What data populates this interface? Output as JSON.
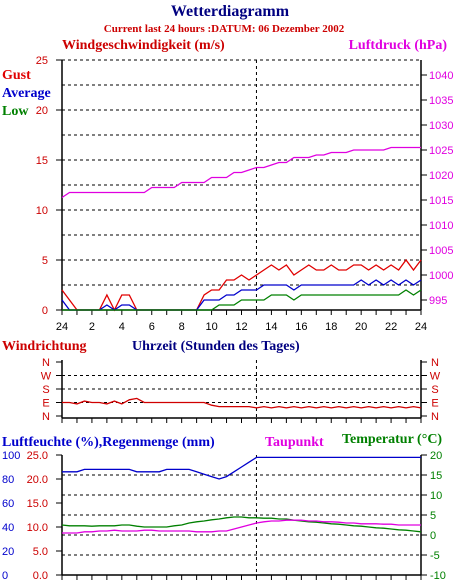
{
  "title": "Wetterdiagramm",
  "subtitle": "Current last 24 hours :DATUM: 06 Dezember 2002",
  "colors": {
    "gust": "#e00000",
    "average": "#0000cc",
    "low": "#008000",
    "pressure": "#e000e0",
    "wind": "#d00000",
    "temp": "#008000",
    "dew": "#e000e0",
    "hum": "#0000cc",
    "rain": "#e00000"
  },
  "chart_data": [
    {
      "type": "line",
      "ylabel_left": "Windgeschwindigkeit (m/s)",
      "ylabel_right": "Luftdruck (hPa)",
      "legend": [
        "Gust",
        "Average",
        "Low"
      ],
      "x_ticks": [
        "24",
        "2",
        "4",
        "6",
        "8",
        "10",
        "12",
        "14",
        "16",
        "18",
        "20",
        "22",
        "24"
      ],
      "y_ticks_left": [
        "0",
        "5",
        "10",
        "15",
        "20",
        "25"
      ],
      "y_ticks_right": [
        "995",
        "1000",
        "1005",
        "1010",
        "1015",
        "1020",
        "1025",
        "1030",
        "1035",
        "1040"
      ],
      "ylim_left": [
        0,
        25
      ],
      "ylim_right": [
        993,
        1043
      ],
      "hours": [
        0,
        0.5,
        1,
        1.5,
        2,
        2.5,
        3,
        3.5,
        4,
        4.5,
        5,
        5.5,
        6,
        6.5,
        7,
        7.5,
        8,
        8.5,
        9,
        9.5,
        10,
        10.5,
        11,
        11.5,
        12,
        12.5,
        13,
        13.5,
        14,
        14.5,
        15,
        15.5,
        16,
        16.5,
        17,
        17.5,
        18,
        18.5,
        19,
        19.5,
        20,
        20.5,
        21,
        21.5,
        22,
        22.5,
        23,
        23.5,
        24
      ],
      "series": [
        {
          "name": "Gust",
          "values": [
            2,
            1,
            0,
            0,
            0,
            0,
            1.5,
            0,
            1.5,
            1.5,
            0,
            0,
            0,
            0,
            0,
            0,
            0,
            0,
            0,
            1.5,
            2,
            2,
            3,
            3,
            3.5,
            3,
            3.5,
            4,
            4.5,
            4,
            4.5,
            3.5,
            4,
            4.5,
            4,
            4,
            4.5,
            4,
            4,
            4.5,
            4.5,
            4,
            4.5,
            4,
            4.5,
            4,
            5,
            4,
            5
          ]
        },
        {
          "name": "Average",
          "values": [
            1,
            0,
            0,
            0,
            0,
            0,
            0.5,
            0,
            0.5,
            0.5,
            0,
            0,
            0,
            0,
            0,
            0,
            0,
            0,
            0,
            1,
            1,
            1,
            1.5,
            1.5,
            2,
            2,
            2,
            2.5,
            2.5,
            2.5,
            2.5,
            2,
            2.5,
            2.5,
            2.5,
            2.5,
            2.5,
            2.5,
            2.5,
            2.5,
            3,
            2.5,
            3,
            2.5,
            3,
            2.5,
            3,
            2.5,
            3
          ]
        },
        {
          "name": "Low",
          "values": [
            0,
            0,
            0,
            0,
            0,
            0,
            0,
            0,
            0,
            0,
            0,
            0,
            0,
            0,
            0,
            0,
            0,
            0,
            0,
            0,
            0,
            0.5,
            0.5,
            0.5,
            1,
            1,
            1,
            1,
            1.5,
            1.5,
            1.5,
            1,
            1.5,
            1.5,
            1.5,
            1.5,
            1.5,
            1.5,
            1.5,
            1.5,
            1.5,
            1.5,
            1.5,
            1.5,
            1.5,
            1.5,
            2,
            1.5,
            2
          ]
        },
        {
          "name": "Luftdruck",
          "axis": "right",
          "values": [
            1015.5,
            1016.5,
            1016.5,
            1016.5,
            1016.5,
            1016.5,
            1016.5,
            1016.5,
            1016.5,
            1016.5,
            1016.5,
            1016.5,
            1017.5,
            1017.5,
            1017.5,
            1017.5,
            1018.5,
            1018.5,
            1018.5,
            1018.5,
            1019.5,
            1019.5,
            1019.5,
            1020.5,
            1020.5,
            1021,
            1021.5,
            1021.5,
            1022,
            1022.5,
            1022.5,
            1023.5,
            1023.5,
            1023.5,
            1024,
            1024,
            1024.5,
            1024.5,
            1024.5,
            1025,
            1025,
            1025,
            1025,
            1025,
            1025.5,
            1025.5,
            1025.5,
            1025.5,
            1025.5
          ]
        }
      ]
    },
    {
      "type": "line",
      "ylabel": "Windrichtung",
      "xlabel": "Uhrzeit (Stunden des Tages)",
      "y_ticks": [
        "N",
        "W",
        "S",
        "E",
        "N"
      ],
      "hours": [
        0,
        0.5,
        1,
        1.5,
        2,
        2.5,
        3,
        3.5,
        4,
        4.5,
        5,
        5.5,
        6,
        6.5,
        7,
        7.5,
        8,
        8.5,
        9,
        9.5,
        10,
        10.5,
        11,
        11.5,
        12,
        12.5,
        13,
        13.5,
        14,
        14.5,
        15,
        15.5,
        16,
        16.5,
        17,
        17.5,
        18,
        18.5,
        19,
        19.5,
        20,
        20.5,
        21,
        21.5,
        22,
        22.5,
        23,
        23.5,
        24
      ],
      "series": [
        {
          "name": "Windrichtung",
          "values": [
            3,
            3,
            3.1,
            2.9,
            3,
            3,
            3.1,
            2.9,
            3.1,
            2.8,
            2.7,
            3,
            3,
            3,
            3,
            3,
            3,
            3,
            3,
            3,
            3.2,
            3.3,
            3.3,
            3.3,
            3.3,
            3.3,
            3.4,
            3.3,
            3.4,
            3.3,
            3.4,
            3.3,
            3.4,
            3.3,
            3.4,
            3.3,
            3.4,
            3.3,
            3.4,
            3.3,
            3.4,
            3.3,
            3.4,
            3.3,
            3.4,
            3.3,
            3.4,
            3.3,
            3.4
          ]
        }
      ]
    },
    {
      "type": "line",
      "ylabel_left": "Luftfeuchte (%),Regenmenge (mm)",
      "label_dew": "Taupunkt",
      "ylabel_right": "Temperatur (°C)",
      "y_ticks_hum": [
        "0",
        "20",
        "40",
        "60",
        "80",
        "100"
      ],
      "y_ticks_rain": [
        "0.0",
        "5.0",
        "10.0",
        "15.0",
        "20.0",
        "25.0"
      ],
      "y_ticks_temp": [
        "-10",
        "-5",
        "0",
        "5",
        "10",
        "15",
        "20"
      ],
      "ylim_left": [
        0,
        25
      ],
      "ylim_right": [
        -10,
        20
      ],
      "hours": [
        0,
        0.5,
        1,
        1.5,
        2,
        2.5,
        3,
        3.5,
        4,
        4.5,
        5,
        5.5,
        6,
        6.5,
        7,
        7.5,
        8,
        8.5,
        9,
        9.5,
        10,
        10.5,
        11,
        11.5,
        12,
        12.5,
        13,
        13.5,
        14,
        14.5,
        15,
        15.5,
        16,
        16.5,
        17,
        17.5,
        18,
        18.5,
        19,
        19.5,
        20,
        20.5,
        21,
        21.5,
        22,
        22.5,
        23,
        23.5,
        24
      ],
      "series": [
        {
          "name": "Regenmenge",
          "axis": "left",
          "values": [
            21.5,
            21.5,
            21.5,
            22,
            22,
            22,
            22,
            22,
            22,
            22,
            21.5,
            21.5,
            21.5,
            21.5,
            22,
            22,
            22,
            22,
            21.5,
            21,
            20.5,
            20,
            20.5,
            21.5,
            22.5,
            23.5,
            24.5,
            24.5,
            24.5,
            24.5,
            24.5,
            24.5,
            24.5,
            24.5,
            24.5,
            24.5,
            24.5,
            24.5,
            24.5,
            24.5,
            24.5,
            24.5,
            24.5,
            24.5,
            24.5,
            24.5,
            24.5,
            24.5,
            24.5
          ]
        },
        {
          "name": "Temperatur",
          "axis": "right",
          "values": [
            2.5,
            2.3,
            2.3,
            2.3,
            2.2,
            2.3,
            2.3,
            2.3,
            2.5,
            2.5,
            2.2,
            2,
            2,
            2,
            2,
            2.3,
            2.5,
            3,
            3.3,
            3.5,
            3.8,
            4,
            4.3,
            4.5,
            4.5,
            4.3,
            4.3,
            4.2,
            4.2,
            4,
            4,
            3.7,
            3.5,
            3.3,
            3.2,
            3,
            2.8,
            2.7,
            2.5,
            2.3,
            2.2,
            2,
            1.8,
            1.7,
            1.5,
            1.3,
            1.2,
            1,
            0.8
          ]
        },
        {
          "name": "Taupunkt",
          "axis": "right",
          "values": [
            0.5,
            0.5,
            0.5,
            0.8,
            0.8,
            1,
            1,
            1.2,
            1,
            1,
            1,
            1.2,
            1.2,
            1,
            1,
            1,
            1,
            1,
            0.8,
            0.8,
            0.8,
            1,
            1,
            1.5,
            2,
            2.5,
            3,
            3.3,
            3.5,
            3.5,
            3.7,
            3.7,
            3.7,
            3.5,
            3.5,
            3.3,
            3.3,
            3.2,
            3,
            3,
            2.8,
            2.8,
            2.8,
            2.7,
            2.7,
            2.5,
            2.5,
            2.5,
            2.5
          ]
        }
      ]
    }
  ]
}
